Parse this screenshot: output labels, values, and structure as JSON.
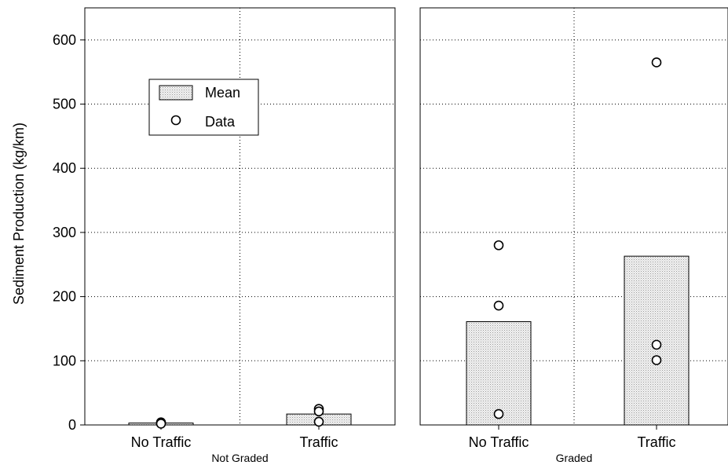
{
  "chart_data": {
    "type": "bar",
    "ylabel": "Sediment Production (kg/km)",
    "ylim": [
      0,
      650
    ],
    "yticks": [
      0,
      100,
      200,
      300,
      400,
      500,
      600
    ],
    "grid": true,
    "legend": {
      "placement": "top-left",
      "entries": [
        {
          "label": "Mean",
          "kind": "bar"
        },
        {
          "label": "Data",
          "kind": "marker"
        }
      ]
    },
    "panels": [
      {
        "group_label": "Not Graded",
        "categories": [
          "No Traffic",
          "Traffic"
        ],
        "means": [
          3,
          17
        ],
        "data": [
          [
            4,
            3,
            2
          ],
          [
            25,
            21,
            5
          ]
        ]
      },
      {
        "group_label": "Graded",
        "categories": [
          "No Traffic",
          "Traffic"
        ],
        "means": [
          161,
          263
        ],
        "data": [
          [
            280,
            186,
            17
          ],
          [
            565,
            125,
            101
          ]
        ]
      }
    ]
  }
}
